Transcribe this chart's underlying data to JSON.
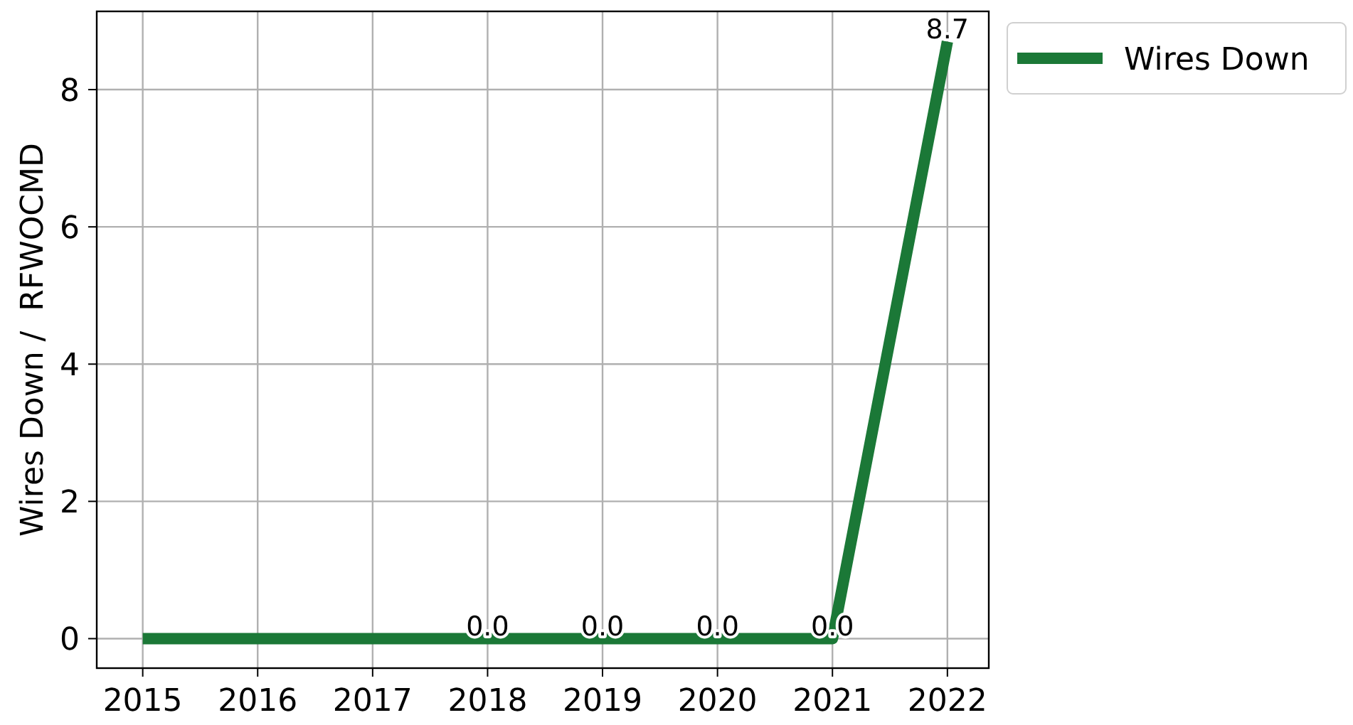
{
  "chart_data": {
    "type": "line",
    "ylabel": "Wires Down /  RFWOCMD",
    "x": [
      2015,
      2016,
      2017,
      2018,
      2019,
      2020,
      2021,
      2022
    ],
    "series": [
      {
        "name": "Wires Down",
        "color": "#1b7837",
        "values": [
          0,
          0,
          0,
          0,
          0,
          0,
          0,
          8.7
        ],
        "value_labels": [
          null,
          null,
          null,
          "0.0",
          "0.0",
          "0.0",
          "0.0",
          "8.7"
        ]
      }
    ],
    "xlim": [
      2014.6,
      2022.36
    ],
    "xticks": [
      2015,
      2016,
      2017,
      2018,
      2019,
      2020,
      2021,
      2022
    ],
    "ylim": [
      -0.43,
      9.14
    ],
    "yticks": [
      0,
      2,
      4,
      6,
      8
    ],
    "grid": true,
    "legend": "top right",
    "marker": "none",
    "line_style": "solid"
  }
}
